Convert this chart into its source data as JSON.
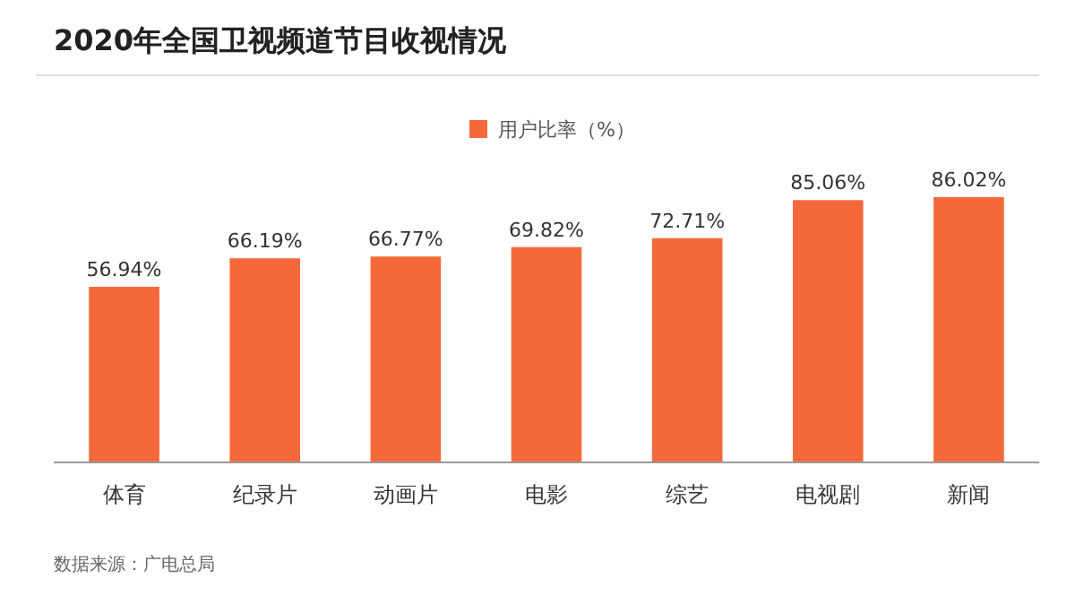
{
  "chart_data": {
    "type": "bar",
    "title": "2020年全国卫视频道节目收视情况",
    "categories": [
      "体育",
      "纪录片",
      "动画片",
      "电影",
      "综艺",
      "电视剧",
      "新闻"
    ],
    "series": [
      {
        "name": "用户比率（%）",
        "color": "#f4683a",
        "values": [
          56.94,
          66.19,
          66.77,
          69.82,
          72.71,
          85.06,
          86.02
        ],
        "value_labels": [
          "56.94%",
          "66.19%",
          "66.77%",
          "69.82%",
          "72.71%",
          "85.06%",
          "86.02%"
        ]
      }
    ],
    "legend": "top",
    "annotations": [
      "数据来源：广电总局"
    ]
  }
}
